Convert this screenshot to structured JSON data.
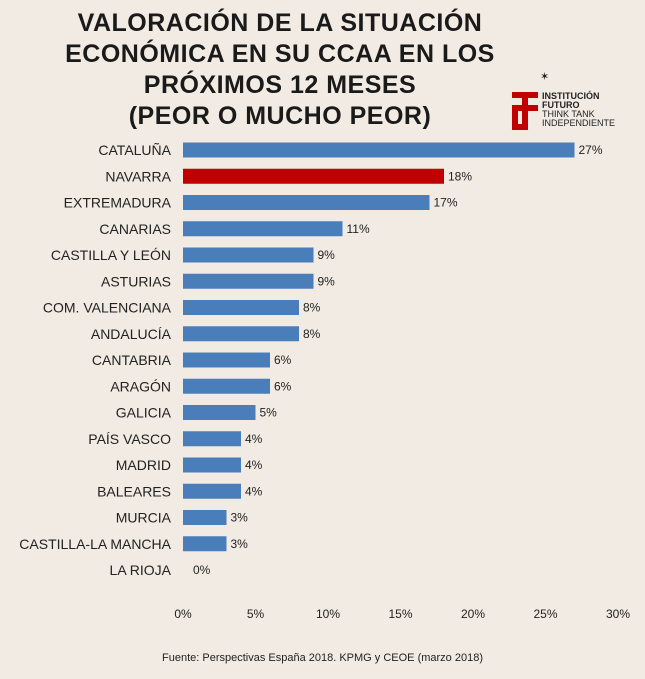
{
  "chart_data": {
    "type": "bar",
    "orientation": "horizontal",
    "title": [
      "VALORACIÓN DE LA SITUACIÓN",
      "ECONÓMICA EN SU CCAA EN LOS",
      "PRÓXIMOS 12 MESES",
      "(PEOR O MUCHO PEOR)"
    ],
    "categories": [
      "CATALUÑA",
      "NAVARRA",
      "EXTREMADURA",
      "CANARIAS",
      "CASTILLA Y LEÓN",
      "ASTURIAS",
      "COM. VALENCIANA",
      "ANDALUCÍA",
      "CANTABRIA",
      "ARAGÓN",
      "GALICIA",
      "PAÍS VASCO",
      "MADRID",
      "BALEARES",
      "MURCIA",
      "CASTILLA-LA MANCHA",
      "LA RIOJA"
    ],
    "values": [
      27,
      18,
      17,
      11,
      9,
      9,
      8,
      8,
      6,
      6,
      5,
      4,
      4,
      4,
      3,
      3,
      0
    ],
    "value_labels": [
      "27%",
      "18%",
      "17%",
      "11%",
      "9%",
      "9%",
      "8%",
      "8%",
      "6%",
      "6%",
      "5%",
      "4%",
      "4%",
      "4%",
      "3%",
      "3%",
      "0%"
    ],
    "highlight": "NAVARRA",
    "xlim": [
      0,
      30
    ],
    "xticks": [
      0,
      5,
      10,
      15,
      20,
      25,
      30
    ],
    "xtick_labels": [
      "0%",
      "5%",
      "10%",
      "15%",
      "20%",
      "25%",
      "30%"
    ],
    "colors": {
      "bar": "#4a7ebb",
      "highlight": "#c00000"
    },
    "source": "Fuente: Perspectivas España 2018. KPMG y CEOE (marzo 2018)"
  },
  "logo": {
    "line1": "INSTITUCIÓN",
    "line2": "FUTURO",
    "line3": "THINK TANK",
    "line4": "INDEPENDIENTE",
    "color": "#c00000"
  }
}
